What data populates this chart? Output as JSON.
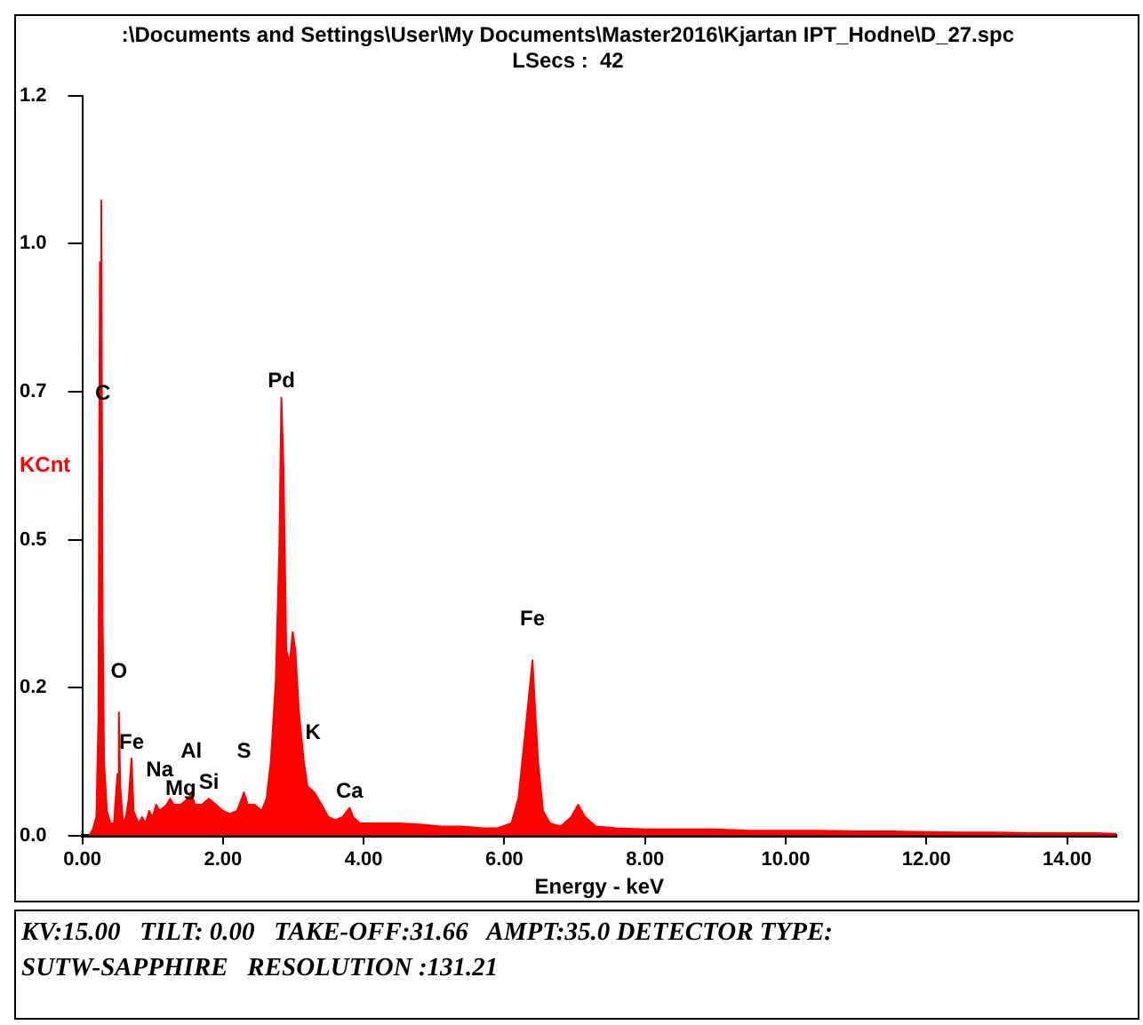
{
  "chart_data": {
    "type": "area",
    "title": ":\\Documents and Settings\\User\\My Documents\\Master2016\\Kjartan IPT_Hodne\\D_27.spc",
    "subtitle": "LSecs :  42",
    "xlabel": "Energy - keV",
    "ylabel": "KCnt",
    "color": "#ff0000",
    "x": [
      0.1,
      0.15,
      0.2,
      0.23,
      0.25,
      0.27,
      0.29,
      0.31,
      0.35,
      0.4,
      0.45,
      0.5,
      0.52,
      0.54,
      0.58,
      0.62,
      0.66,
      0.7,
      0.73,
      0.8,
      0.85,
      0.9,
      0.95,
      1.0,
      1.05,
      1.1,
      1.2,
      1.25,
      1.3,
      1.4,
      1.5,
      1.55,
      1.6,
      1.7,
      1.8,
      1.9,
      2.0,
      2.1,
      2.2,
      2.3,
      2.35,
      2.45,
      2.55,
      2.62,
      2.68,
      2.75,
      2.8,
      2.83,
      2.86,
      2.9,
      2.95,
      2.99,
      3.03,
      3.08,
      3.15,
      3.2,
      3.3,
      3.4,
      3.5,
      3.6,
      3.7,
      3.8,
      3.85,
      3.95,
      4.2,
      4.5,
      4.8,
      5.1,
      5.4,
      5.7,
      5.9,
      6.1,
      6.2,
      6.3,
      6.37,
      6.4,
      6.43,
      6.48,
      6.55,
      6.65,
      6.8,
      6.95,
      7.05,
      7.15,
      7.3,
      7.6,
      8.0,
      8.5,
      9.0,
      9.5,
      10.0,
      10.5,
      11.0,
      11.5,
      12.0,
      12.5,
      13.0,
      13.5,
      14.0,
      14.4,
      14.7
    ],
    "values": [
      0.0,
      0.01,
      0.03,
      0.19,
      0.93,
      1.03,
      0.35,
      0.12,
      0.04,
      0.02,
      0.02,
      0.1,
      0.2,
      0.08,
      0.02,
      0.03,
      0.06,
      0.125,
      0.04,
      0.02,
      0.03,
      0.02,
      0.04,
      0.03,
      0.05,
      0.04,
      0.05,
      0.06,
      0.05,
      0.05,
      0.06,
      0.07,
      0.05,
      0.05,
      0.06,
      0.05,
      0.04,
      0.035,
      0.04,
      0.07,
      0.05,
      0.05,
      0.04,
      0.06,
      0.12,
      0.25,
      0.46,
      0.71,
      0.6,
      0.3,
      0.28,
      0.33,
      0.3,
      0.2,
      0.12,
      0.08,
      0.07,
      0.05,
      0.03,
      0.025,
      0.03,
      0.045,
      0.03,
      0.02,
      0.02,
      0.02,
      0.018,
      0.015,
      0.015,
      0.012,
      0.012,
      0.02,
      0.06,
      0.17,
      0.25,
      0.284,
      0.22,
      0.12,
      0.04,
      0.02,
      0.015,
      0.03,
      0.05,
      0.03,
      0.015,
      0.012,
      0.01,
      0.01,
      0.01,
      0.008,
      0.008,
      0.008,
      0.007,
      0.007,
      0.006,
      0.005,
      0.005,
      0.004,
      0.004,
      0.004,
      0.003
    ],
    "xlim": [
      0,
      14.7
    ],
    "xticks": [
      {
        "value": 0,
        "label": "0.00"
      },
      {
        "value": 2,
        "label": "2.00"
      },
      {
        "value": 4,
        "label": "4.00"
      },
      {
        "value": 6,
        "label": "6.00"
      },
      {
        "value": 8,
        "label": "8.00"
      },
      {
        "value": 10,
        "label": "10.00"
      },
      {
        "value": 12,
        "label": "12.00"
      },
      {
        "value": 14,
        "label": "14.00"
      }
    ],
    "ylim": [
      0,
      1.2
    ],
    "yticks": [
      {
        "value": 0,
        "label": "0.0"
      },
      {
        "value": 0.24,
        "label": "0.2"
      },
      {
        "value": 0.48,
        "label": "0.5"
      },
      {
        "value": 0.72,
        "label": "0.7"
      },
      {
        "value": 0.96,
        "label": "1.0"
      },
      {
        "value": 1.2,
        "label": "1.2"
      }
    ],
    "annotations": [
      {
        "text": "C",
        "x": 0.29,
        "y": 0.69
      },
      {
        "text": "O",
        "x": 0.52,
        "y": 0.2
      },
      {
        "text": "Fe",
        "x": 0.7,
        "y": 0.125
      },
      {
        "text": "Na",
        "x": 1.1,
        "y": 0.04
      },
      {
        "text": "Mg",
        "x": 1.4,
        "y": 0.05
      },
      {
        "text": "Al",
        "x": 1.55,
        "y": 0.07
      },
      {
        "text": "Si",
        "x": 1.8,
        "y": 0.06
      },
      {
        "text": "S",
        "x": 2.3,
        "y": 0.07
      },
      {
        "text": "Pd",
        "x": 2.83,
        "y": 0.71
      },
      {
        "text": "K",
        "x": 3.28,
        "y": 0.1
      },
      {
        "text": "Ca",
        "x": 3.8,
        "y": 0.045
      },
      {
        "text": "Fe",
        "x": 6.4,
        "y": 0.284
      },
      "KV:15.00   TILT: 0.00   TAKE-OFF:31.66   AMPT:35.0 DETECTOR TYPE:",
      "SUTW-SAPPHIRE   RESOLUTION :131.21"
    ]
  }
}
